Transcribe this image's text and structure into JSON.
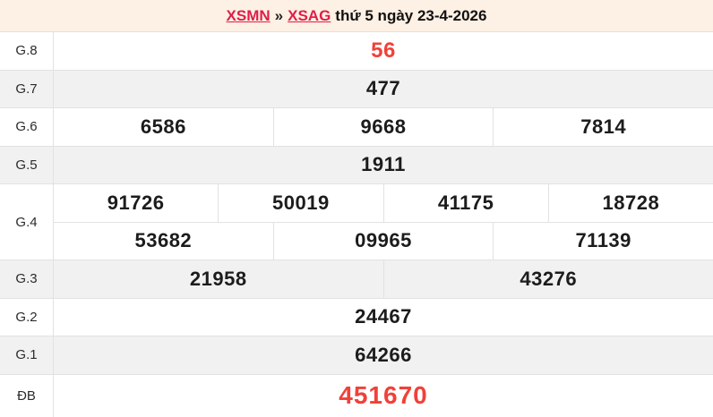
{
  "header": {
    "link_xsmn": "XSMN",
    "separator": "»",
    "link_xsag": "XSAG",
    "suffix": "thứ 5 ngày 23-4-2026"
  },
  "colors": {
    "header_bg": "#fdf0e4",
    "link_red": "#e11d48",
    "number_red": "#f04139",
    "row_alt_bg": "#f1f1f1",
    "border": "#e2e2e2"
  },
  "table": {
    "rows": [
      {
        "label": "G.8",
        "cells": [
          "56"
        ]
      },
      {
        "label": "G.7",
        "cells": [
          "477"
        ]
      },
      {
        "label": "G.6",
        "cells": [
          "6586",
          "9668",
          "7814"
        ]
      },
      {
        "label": "G.5",
        "cells": [
          "1911"
        ]
      },
      {
        "label": "G.4",
        "lines": [
          [
            "91726",
            "50019",
            "41175",
            "18728"
          ],
          [
            "53682",
            "09965",
            "71139"
          ]
        ]
      },
      {
        "label": "G.3",
        "cells": [
          "21958",
          "43276"
        ]
      },
      {
        "label": "G.2",
        "cells": [
          "24467"
        ]
      },
      {
        "label": "G.1",
        "cells": [
          "64266"
        ]
      },
      {
        "label": "ĐB",
        "cells": [
          "451670"
        ]
      }
    ]
  }
}
